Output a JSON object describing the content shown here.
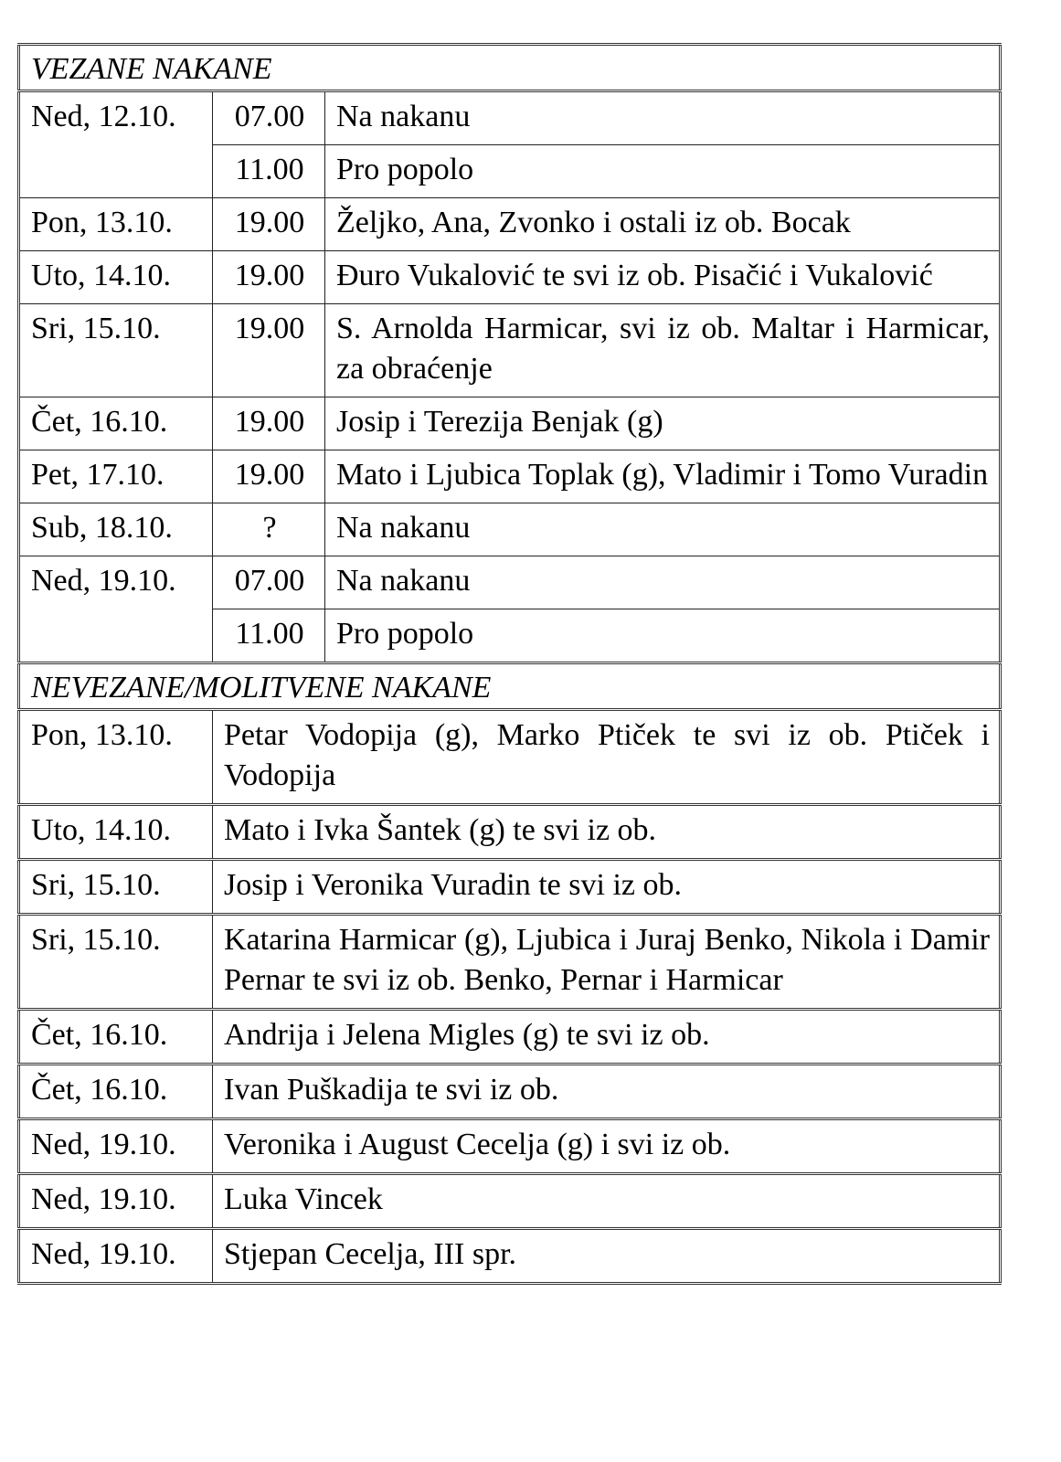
{
  "section1": {
    "title": "VEZANE NAKANE",
    "rows": [
      {
        "day": "Ned, 12.10.",
        "masses": [
          {
            "time": "07.00",
            "intention": "Na nakanu"
          },
          {
            "time": "11.00",
            "intention": "Pro popolo"
          }
        ]
      },
      {
        "day": "Pon, 13.10.",
        "masses": [
          {
            "time": "19.00",
            "intention": "Željko, Ana, Zvonko i ostali iz ob. Bocak"
          }
        ]
      },
      {
        "day": "Uto, 14.10.",
        "masses": [
          {
            "time": "19.00",
            "intention": "Đuro Vukalović te svi iz ob. Pisačić i Vukalović"
          }
        ]
      },
      {
        "day": "Sri, 15.10.",
        "masses": [
          {
            "time": "19.00",
            "intention": "S. Arnolda Harmicar, svi iz ob. Maltar i Harmicar, za obraćenje"
          }
        ]
      },
      {
        "day": "Čet, 16.10.",
        "masses": [
          {
            "time": "19.00",
            "intention": "Josip i Terezija Benjak (g)"
          }
        ]
      },
      {
        "day": "Pet, 17.10.",
        "masses": [
          {
            "time": "19.00",
            "intention": "Mato i Ljubica Toplak (g), Vladimir i Tomo Vuradin"
          }
        ]
      },
      {
        "day": "Sub, 18.10.",
        "masses": [
          {
            "time": "?",
            "intention": "Na nakanu"
          }
        ]
      },
      {
        "day": "Ned, 19.10.",
        "masses": [
          {
            "time": "07.00",
            "intention": "Na nakanu"
          },
          {
            "time": "11.00",
            "intention": "Pro popolo"
          }
        ]
      }
    ]
  },
  "section2": {
    "title": "NEVEZANE/MOLITVENE NAKANE",
    "rows": [
      {
        "day": "Pon, 13.10.",
        "intention": "Petar Vodopija (g), Marko Ptiček te svi iz ob. Ptiček i Vodopija"
      },
      {
        "day": "Uto, 14.10.",
        "intention": "Mato i Ivka Šantek (g) te svi iz ob."
      },
      {
        "day": "Sri, 15.10.",
        "intention": "Josip i Veronika Vuradin te svi iz ob."
      },
      {
        "day": "Sri, 15.10.",
        "intention": "Katarina Harmicar (g), Ljubica i Juraj Benko, Nikola i Damir Pernar te svi iz ob. Benko, Pernar i Harmicar"
      },
      {
        "day": "Čet, 16.10.",
        "intention": "Andrija i Jelena Migles (g) te svi iz ob."
      },
      {
        "day": "Čet, 16.10.",
        "intention": "Ivan Puškadija te svi iz ob."
      },
      {
        "day": "Ned, 19.10.",
        "intention": "Veronika i August Cecelja (g) i svi iz ob."
      },
      {
        "day": "Ned, 19.10.",
        "intention": "Luka Vincek"
      },
      {
        "day": "Ned, 19.10.",
        "intention": "Stjepan Cecelja, III spr."
      }
    ]
  }
}
